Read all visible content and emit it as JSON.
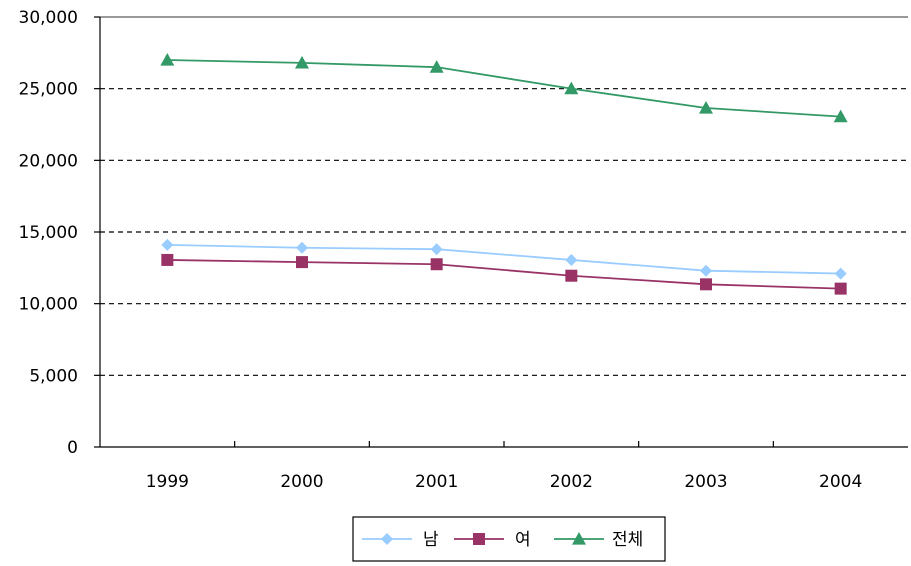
{
  "chart_data": {
    "type": "line",
    "title": "",
    "xlabel": "",
    "ylabel": "",
    "categories": [
      "1999",
      "2000",
      "2001",
      "2002",
      "2003",
      "2004"
    ],
    "ylim": [
      0,
      30000
    ],
    "yticks": [
      0,
      5000,
      10000,
      15000,
      20000,
      25000,
      30000
    ],
    "ytick_labels": [
      "0",
      "5,000",
      "10,000",
      "15,000",
      "20,000",
      "25,000",
      "30,000"
    ],
    "grid": "horizontal dashed",
    "legend_position": "bottom",
    "series": [
      {
        "name": "남",
        "color": "#99ccff",
        "marker": "diamond",
        "values": [
          14100,
          13900,
          13800,
          13050,
          12300,
          12100
        ]
      },
      {
        "name": "여",
        "color": "#993366",
        "marker": "square",
        "values": [
          13050,
          12900,
          12750,
          11950,
          11350,
          11050
        ]
      },
      {
        "name": "전체",
        "color": "#339966",
        "marker": "triangle",
        "values": [
          27000,
          26800,
          26500,
          25000,
          23650,
          23050
        ]
      }
    ]
  }
}
